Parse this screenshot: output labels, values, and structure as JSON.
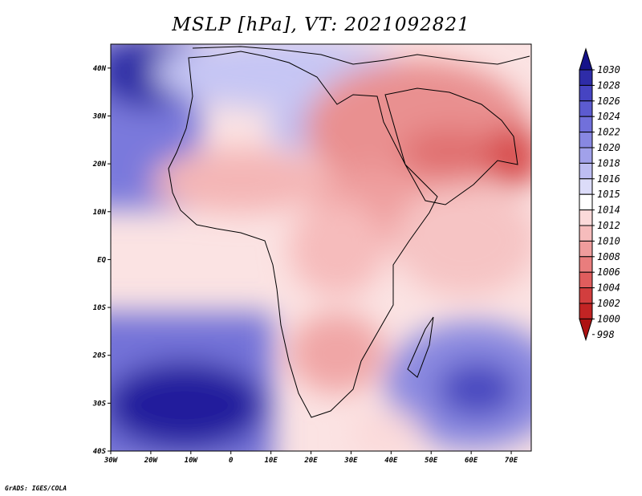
{
  "title": "MSLP [hPa], VT: 2021092821",
  "credit": "GrADS: IGES/COLA",
  "map": {
    "region": "Africa and Arabian Peninsula",
    "lon_range": [
      -30,
      75
    ],
    "lat_range": [
      -40,
      45
    ],
    "x_ticks": [
      "30W",
      "20W",
      "10W",
      "0",
      "10E",
      "20E",
      "30E",
      "40E",
      "50E",
      "60E",
      "70E"
    ],
    "y_ticks": [
      "40N",
      "30N",
      "20N",
      "10N",
      "EQ",
      "10S",
      "20S",
      "30S",
      "40S"
    ],
    "features": [
      {
        "name": "Azores high",
        "label": "high pressure",
        "lon": -22,
        "lat": 40,
        "value": 1030
      },
      {
        "name": "South Atlantic high",
        "label": "high pressure",
        "lon": -12,
        "lat": -33,
        "value": 1030
      },
      {
        "name": "Mascarene high",
        "label": "high pressure",
        "lon": 60,
        "lat": -29,
        "value": 1024
      },
      {
        "name": "Arabian low",
        "label": "low pressure",
        "lon": 50,
        "lat": 20,
        "value": 1006
      },
      {
        "name": "Indian low",
        "label": "low pressure",
        "lon": 72,
        "lat": 22,
        "value": 1002
      }
    ]
  },
  "colorbar": {
    "levels": [
      "1030",
      "1028",
      "1026",
      "1024",
      "1022",
      "1020",
      "1018",
      "1016",
      "1015",
      "1014",
      "1012",
      "1010",
      "1008",
      "1006",
      "1004",
      "1002",
      "1000",
      "998"
    ],
    "colors": [
      "#15128a",
      "#2e2ca8",
      "#4644c2",
      "#5c5bd0",
      "#7170db",
      "#8888e2",
      "#a1a1ea",
      "#bdbdf2",
      "#dcdcf9",
      "#ffffff",
      "#fbdada",
      "#f6bcbc",
      "#ef9c9c",
      "#e97d7d",
      "#e05d5d",
      "#d23e3e",
      "#c22424",
      "#ad1212"
    ]
  }
}
